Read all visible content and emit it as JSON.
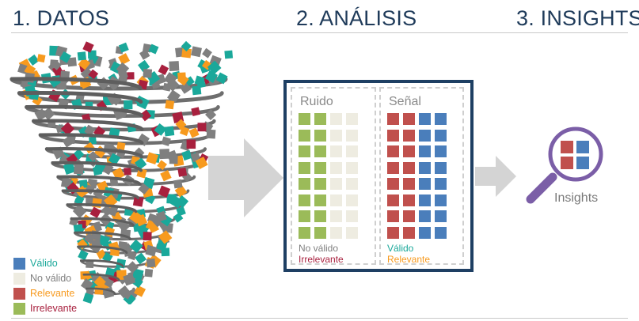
{
  "headings": {
    "datos": "1. DATOS",
    "analisis": "2. ANÁLISIS",
    "insights": "3. INSIGHTS"
  },
  "colors": {
    "valido": "#4a7ebb",
    "no_valido": "#eeece1",
    "relevante": "#c0504d",
    "irrelevante": "#9bbb59",
    "teal": "#1aa89a",
    "orange": "#f79a1e",
    "gray": "#7f7f7f",
    "crimson": "#a8203e",
    "navy": "#1e3f63",
    "purple": "#7b5ea7",
    "arrow": "#d4d4d4"
  },
  "legend": [
    {
      "label": "Válido",
      "text_color": "#1aa89a",
      "swatch": "#4a7ebb"
    },
    {
      "label": "No válido",
      "text_color": "#7f7f7f",
      "swatch": "#eeece1"
    },
    {
      "label": "Relevante",
      "text_color": "#f79a1e",
      "swatch": "#c0504d"
    },
    {
      "label": "Irrelevante",
      "text_color": "#a8203e",
      "swatch": "#9bbb59"
    }
  ],
  "ruido": {
    "title": "Ruido",
    "caption_1": "No válido",
    "caption_2": "Irrelevante"
  },
  "senal": {
    "title": "Señal",
    "caption_1": "Válido",
    "caption_2": "Relevante"
  },
  "insights": {
    "label": "Insights"
  }
}
